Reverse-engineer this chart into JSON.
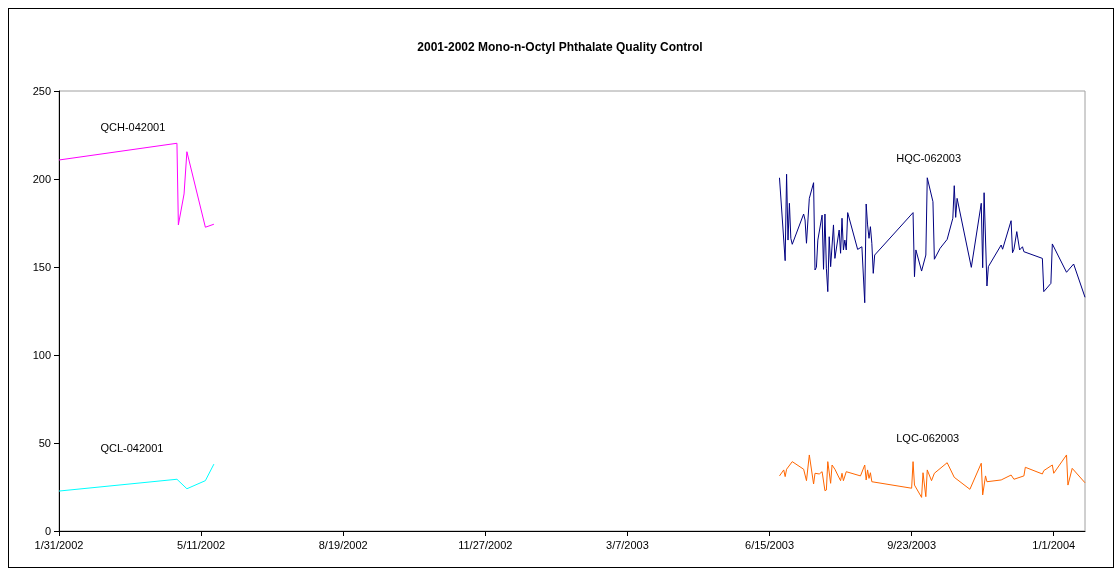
{
  "chart_data": {
    "type": "line",
    "title": "2001-2002 Mono-n-Octyl Phthalate Quality Control",
    "xlim": [
      "2002-01-31",
      "2004-01-23"
    ],
    "xticks": [
      {
        "value": "2002-01-31",
        "label": "1/31/2002"
      },
      {
        "value": "2002-05-11",
        "label": "5/11/2002"
      },
      {
        "value": "2002-08-19",
        "label": "8/19/2002"
      },
      {
        "value": "2002-11-27",
        "label": "11/27/2002"
      },
      {
        "value": "2003-03-07",
        "label": "3/7/2003"
      },
      {
        "value": "2003-06-15",
        "label": "6/15/2003"
      },
      {
        "value": "2003-09-23",
        "label": "9/23/2003"
      },
      {
        "value": "2004-01-01",
        "label": "1/1/2004"
      }
    ],
    "ylim": [
      0,
      250
    ],
    "yticks": [
      0,
      50,
      100,
      150,
      200,
      250
    ],
    "grid": false,
    "legend": false,
    "marker": "none",
    "line_style": "solid",
    "series": [
      {
        "name": "QCH-042001",
        "color": "#ff00ff",
        "x": [
          "2002-01-31",
          "2002-04-24",
          "2002-04-25",
          "2002-04-29",
          "2002-05-01",
          "2002-05-14",
          "2002-05-20"
        ],
        "values": [
          210.8,
          220.3,
          173.9,
          191.5,
          215.5,
          172.6,
          174.3
        ]
      },
      {
        "name": "QCL-042001",
        "color": "#00ffff",
        "x": [
          "2002-01-31",
          "2002-04-24",
          "2002-05-01",
          "2002-05-14",
          "2002-05-20"
        ],
        "values": [
          22.7,
          29.4,
          24,
          28.6,
          38
        ]
      },
      {
        "name": "HQC-062003",
        "color": "#000080",
        "x": [
          "2003-06-22",
          "2003-06-26",
          "2003-06-27",
          "2003-06-28",
          "2003-06-29",
          "2003-06-30",
          "2003-07-01",
          "2003-07-09",
          "2003-07-10",
          "2003-07-11",
          "2003-07-13",
          "2003-07-16",
          "2003-07-17",
          "2003-07-18",
          "2003-07-19",
          "2003-07-22",
          "2003-07-23",
          "2003-07-24",
          "2003-07-25",
          "2003-07-26",
          "2003-07-27",
          "2003-07-28",
          "2003-07-30",
          "2003-07-31",
          "2003-08-03",
          "2003-08-04",
          "2003-08-05",
          "2003-08-06",
          "2003-08-07",
          "2003-08-08",
          "2003-08-09",
          "2003-08-16",
          "2003-08-19",
          "2003-08-21",
          "2003-08-22",
          "2003-08-23",
          "2003-08-24",
          "2003-08-25",
          "2003-08-26",
          "2003-08-27",
          "2003-08-28",
          "2003-09-24",
          "2003-09-25",
          "2003-09-26",
          "2003-09-30",
          "2003-10-03",
          "2003-10-04",
          "2003-10-08",
          "2003-10-09",
          "2003-10-13",
          "2003-10-18",
          "2003-10-22",
          "2003-10-23",
          "2003-10-24",
          "2003-10-25",
          "2003-11-04",
          "2003-11-11",
          "2003-11-12",
          "2003-11-13",
          "2003-11-15",
          "2003-11-16",
          "2003-11-25",
          "2003-11-26",
          "2003-12-02",
          "2003-12-03",
          "2003-12-04",
          "2003-12-06",
          "2003-12-08",
          "2003-12-10",
          "2003-12-11",
          "2003-12-24",
          "2003-12-25",
          "2003-12-30",
          "2003-12-31",
          "2004-01-10",
          "2004-01-15",
          "2004-01-23"
        ],
        "values": [
          200.7,
          153.6,
          202.7,
          165.3,
          186.2,
          166.3,
          162.9,
          180.1,
          176.7,
          163.5,
          189,
          197.9,
          148.3,
          149.8,
          165.3,
          179.5,
          148.7,
          180.1,
          149.3,
          136,
          167.2,
          150.2,
          173.9,
          154.9,
          171,
          157.8,
          177.7,
          159.7,
          165.3,
          159.7,
          180.9,
          160,
          161.5,
          129.7,
          185.8,
          173.9,
          166.3,
          172.9,
          163.5,
          146.4,
          156.8,
          180.9,
          144.5,
          159.7,
          147.7,
          156.8,
          200.7,
          187.1,
          154.4,
          160.6,
          165.7,
          177.7,
          196.2,
          178.2,
          189,
          149.8,
          186.2,
          149.6,
          192.2,
          139.2,
          150.2,
          162.5,
          160.1,
          176.3,
          158.1,
          160.1,
          170.1,
          159.7,
          161.5,
          158.7,
          154.9,
          136,
          140.7,
          163.1,
          147,
          151.7,
          132.8
        ]
      },
      {
        "name": "LQC-062003",
        "color": "#ff6600",
        "x": [
          "2003-06-22",
          "2003-06-25",
          "2003-06-26",
          "2003-06-27",
          "2003-07-01",
          "2003-07-09",
          "2003-07-11",
          "2003-07-13",
          "2003-07-16",
          "2003-07-17",
          "2003-07-20",
          "2003-07-22",
          "2003-07-24",
          "2003-07-25",
          "2003-07-26",
          "2003-07-28",
          "2003-07-29",
          "2003-07-31",
          "2003-08-02",
          "2003-08-04",
          "2003-08-05",
          "2003-08-06",
          "2003-08-08",
          "2003-08-18",
          "2003-08-21",
          "2003-08-22",
          "2003-08-23",
          "2003-08-24",
          "2003-08-25",
          "2003-08-26",
          "2003-09-23",
          "2003-09-24",
          "2003-09-25",
          "2003-09-30",
          "2003-10-01",
          "2003-10-03",
          "2003-10-04",
          "2003-10-07",
          "2003-10-09",
          "2003-10-18",
          "2003-10-23",
          "2003-11-03",
          "2003-11-11",
          "2003-11-12",
          "2003-11-14",
          "2003-11-15",
          "2003-11-25",
          "2003-12-02",
          "2003-12-04",
          "2003-12-11",
          "2003-12-12",
          "2003-12-24",
          "2003-12-25",
          "2003-12-31",
          "2004-01-01",
          "2004-01-10",
          "2004-01-11",
          "2004-01-14",
          "2004-01-23"
        ],
        "values": [
          31.3,
          34.7,
          30.9,
          35.1,
          39.4,
          35.1,
          28.6,
          43.2,
          26.7,
          32.8,
          32.4,
          33.7,
          22.9,
          23.3,
          39.4,
          27.1,
          37.5,
          35.1,
          31.8,
          28.6,
          32.8,
          28.6,
          33.7,
          31.3,
          37.5,
          29,
          34.7,
          29.9,
          33.1,
          28,
          24.3,
          39.4,
          26.1,
          19.1,
          33.1,
          19.5,
          34.7,
          28.6,
          32.8,
          38.8,
          30.5,
          23.7,
          38.5,
          20.5,
          31.3,
          28,
          29,
          31.8,
          29.4,
          31.3,
          36.2,
          32.4,
          34.3,
          37.5,
          32.8,
          43.2,
          26.1,
          35.6,
          27.4
        ]
      }
    ]
  }
}
